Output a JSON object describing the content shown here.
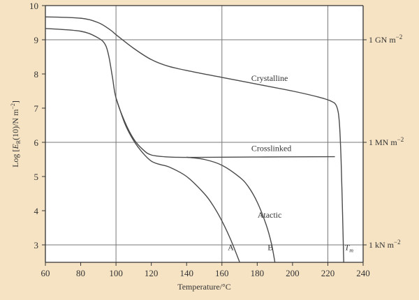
{
  "chart_data": {
    "type": "line",
    "title": "",
    "xlabel": "Temperature/°C",
    "ylabel": "Log [E_R(10)/N m^-2]",
    "ylabel_parts": {
      "prefix": "Log [",
      "italic": "E",
      "sub": "R",
      "mid": "(10)/N m",
      "sup": "−2",
      "suffix": "]"
    },
    "xlim": [
      60,
      240
    ],
    "ylim": [
      2.5,
      10
    ],
    "xticks": [
      60,
      80,
      100,
      120,
      140,
      160,
      180,
      200,
      220,
      240
    ],
    "yticks": [
      3,
      4,
      5,
      6,
      7,
      8,
      9,
      10
    ],
    "grid": {
      "x": [
        100,
        160,
        220
      ],
      "y": [
        3,
        6,
        9
      ]
    },
    "right_axis_labels": [
      {
        "y": 9,
        "text": "1 GN m",
        "sup": "−2"
      },
      {
        "y": 6,
        "text": "1 MN m",
        "sup": "−2"
      },
      {
        "y": 3,
        "text": "1 kN m",
        "sup": "−2"
      }
    ],
    "series": [
      {
        "name": "Crystalline",
        "label_at": [
          187,
          7.8
        ],
        "points": [
          [
            60,
            9.67
          ],
          [
            80,
            9.63
          ],
          [
            90,
            9.5
          ],
          [
            97,
            9.28
          ],
          [
            100,
            9.15
          ],
          [
            110,
            8.75
          ],
          [
            120,
            8.42
          ],
          [
            130,
            8.22
          ],
          [
            145,
            8.05
          ],
          [
            160,
            7.9
          ],
          [
            180,
            7.7
          ],
          [
            200,
            7.5
          ],
          [
            215,
            7.32
          ],
          [
            222,
            7.2
          ],
          [
            225,
            7.05
          ],
          [
            226.5,
            6.6
          ],
          [
            227.5,
            5.5
          ],
          [
            228.3,
            4
          ],
          [
            229,
            2.5
          ]
        ]
      },
      {
        "name": "Crosslinked",
        "label_at": [
          188,
          5.75
        ],
        "points": [
          [
            60,
            9.33
          ],
          [
            80,
            9.25
          ],
          [
            90,
            9.05
          ],
          [
            94,
            8.85
          ],
          [
            96,
            8.5
          ],
          [
            98,
            7.9
          ],
          [
            100,
            7.3
          ],
          [
            105,
            6.6
          ],
          [
            110,
            6.1
          ],
          [
            115,
            5.8
          ],
          [
            120,
            5.63
          ],
          [
            130,
            5.57
          ],
          [
            145,
            5.56
          ],
          [
            180,
            5.57
          ],
          [
            224,
            5.58
          ]
        ]
      },
      {
        "name": "Atactic",
        "label_at": [
          187,
          3.8
        ],
        "points": [
          [
            140,
            5.565
          ],
          [
            150,
            5.5
          ],
          [
            160,
            5.33
          ],
          [
            170,
            4.98
          ],
          [
            175,
            4.7
          ],
          [
            180,
            4.25
          ],
          [
            185,
            3.6
          ],
          [
            188,
            3.05
          ],
          [
            190,
            2.5
          ]
        ]
      },
      {
        "name": "A",
        "label_at": [
          165,
          2.85
        ],
        "points": [
          [
            100,
            7.3
          ],
          [
            105,
            6.55
          ],
          [
            110,
            6.05
          ],
          [
            115,
            5.7
          ],
          [
            120,
            5.45
          ],
          [
            125,
            5.35
          ],
          [
            130,
            5.28
          ],
          [
            140,
            5.0
          ],
          [
            150,
            4.5
          ],
          [
            155,
            4.15
          ],
          [
            160,
            3.7
          ],
          [
            165,
            3.15
          ],
          [
            170,
            2.5
          ]
        ]
      }
    ],
    "annotations": [
      {
        "text": "B",
        "at": [
          187.5,
          2.85
        ]
      },
      {
        "text": "T",
        "sub": "m",
        "at": [
          232,
          2.85
        ]
      }
    ],
    "line_color": "#4a4a4a",
    "plot_background": "#ffffff",
    "page_background": "#f6e3c3"
  }
}
